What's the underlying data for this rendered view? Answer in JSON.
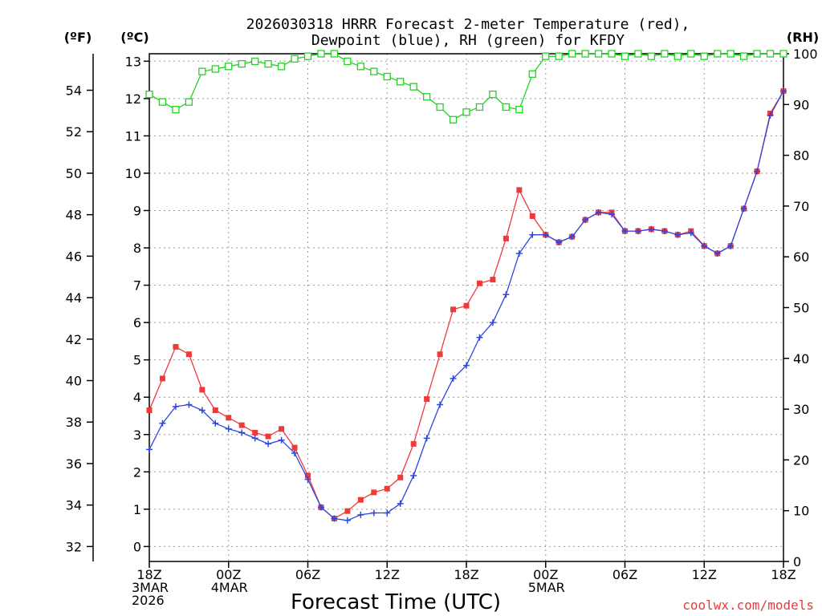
{
  "chart_data": {
    "type": "line",
    "title": "2026030318 HRRR Forecast 2-meter Temperature (red),",
    "subtitle": "Dewpoint (blue), RH (green) for KFDY",
    "xlabel": "Forecast Time (UTC)",
    "watermark": "coolwx.com/models",
    "unit_labels": {
      "fahrenheit": "(ºF)",
      "celsius": "(ºC)",
      "rh": "(RH)"
    },
    "celsius_axis": {
      "min": -0.4,
      "max": 13.2,
      "ticks": [
        "0",
        "1",
        "2",
        "3",
        "4",
        "5",
        "6",
        "7",
        "8",
        "9",
        "10",
        "11",
        "12",
        "13"
      ]
    },
    "fahrenheit_axis": {
      "ticks": [
        "32",
        "34",
        "36",
        "38",
        "40",
        "42",
        "44",
        "46",
        "48",
        "50",
        "52",
        "54"
      ]
    },
    "rh_axis": {
      "min": 0,
      "max": 100,
      "ticks": [
        "0",
        "10",
        "20",
        "30",
        "40",
        "50",
        "60",
        "70",
        "80",
        "90",
        "100"
      ]
    },
    "x_axis": {
      "hours_min": 0,
      "hours_max": 48,
      "ticks": [
        {
          "hour": 0,
          "lines": [
            "18Z",
            "3MAR",
            "2026"
          ]
        },
        {
          "hour": 6,
          "lines": [
            "00Z",
            "4MAR"
          ]
        },
        {
          "hour": 12,
          "lines": [
            "06Z"
          ]
        },
        {
          "hour": 18,
          "lines": [
            "12Z"
          ]
        },
        {
          "hour": 24,
          "lines": [
            "18Z"
          ]
        },
        {
          "hour": 30,
          "lines": [
            "00Z",
            "5MAR"
          ]
        },
        {
          "hour": 36,
          "lines": [
            "06Z"
          ]
        },
        {
          "hour": 42,
          "lines": [
            "12Z"
          ]
        },
        {
          "hour": 48,
          "lines": [
            "18Z"
          ]
        }
      ]
    },
    "x": [
      0,
      1,
      2,
      3,
      4,
      5,
      6,
      7,
      8,
      9,
      10,
      11,
      12,
      13,
      14,
      15,
      16,
      17,
      18,
      19,
      20,
      21,
      22,
      23,
      24,
      25,
      26,
      27,
      28,
      29,
      30,
      31,
      32,
      33,
      34,
      35,
      36,
      37,
      38,
      39,
      40,
      41,
      42,
      43,
      44,
      45,
      46,
      47,
      48
    ],
    "series": [
      {
        "name": "Temperature",
        "axis": "celsius",
        "color": "#ef3a3a",
        "marker": "filled-square",
        "values": [
          3.65,
          4.5,
          5.35,
          5.15,
          4.2,
          3.65,
          3.45,
          3.25,
          3.05,
          2.95,
          3.15,
          2.65,
          1.9,
          1.05,
          0.75,
          0.95,
          1.25,
          1.45,
          1.55,
          1.85,
          2.75,
          3.95,
          5.15,
          6.35,
          6.45,
          7.05,
          7.15,
          8.25,
          9.55,
          8.85,
          8.35,
          8.15,
          8.3,
          8.75,
          8.95,
          8.95,
          8.45,
          8.45,
          8.5,
          8.45,
          8.35,
          8.45,
          8.05,
          7.85,
          8.05,
          9.05,
          10.05,
          11.6,
          12.2
        ]
      },
      {
        "name": "Dewpoint",
        "axis": "celsius",
        "color": "#2f45e0",
        "marker": "plus",
        "values": [
          2.6,
          3.3,
          3.75,
          3.8,
          3.65,
          3.3,
          3.15,
          3.05,
          2.9,
          2.75,
          2.85,
          2.5,
          1.8,
          1.05,
          0.75,
          0.7,
          0.85,
          0.9,
          0.9,
          1.15,
          1.9,
          2.9,
          3.8,
          4.5,
          4.85,
          5.6,
          6.0,
          6.75,
          7.85,
          8.35,
          8.35,
          8.15,
          8.3,
          8.75,
          8.95,
          8.9,
          8.45,
          8.45,
          8.5,
          8.45,
          8.35,
          8.4,
          8.05,
          7.85,
          8.05,
          9.05,
          10.05,
          11.55,
          12.2
        ]
      },
      {
        "name": "RH",
        "axis": "rh",
        "color": "#22d322",
        "marker": "open-square",
        "values": [
          92,
          90.5,
          89,
          90.5,
          96.5,
          97,
          97.5,
          98,
          98.5,
          98,
          97.5,
          99,
          99.5,
          100,
          100,
          98.5,
          97.5,
          96.5,
          95.5,
          94.5,
          93.5,
          91.5,
          89.5,
          87,
          88.5,
          89.5,
          92,
          89.5,
          89,
          96,
          99.5,
          99.5,
          100,
          100,
          100,
          100,
          99.5,
          100,
          99.5,
          100,
          99.5,
          100,
          99.5,
          100,
          100,
          99.5,
          100,
          100,
          100
        ]
      }
    ]
  }
}
